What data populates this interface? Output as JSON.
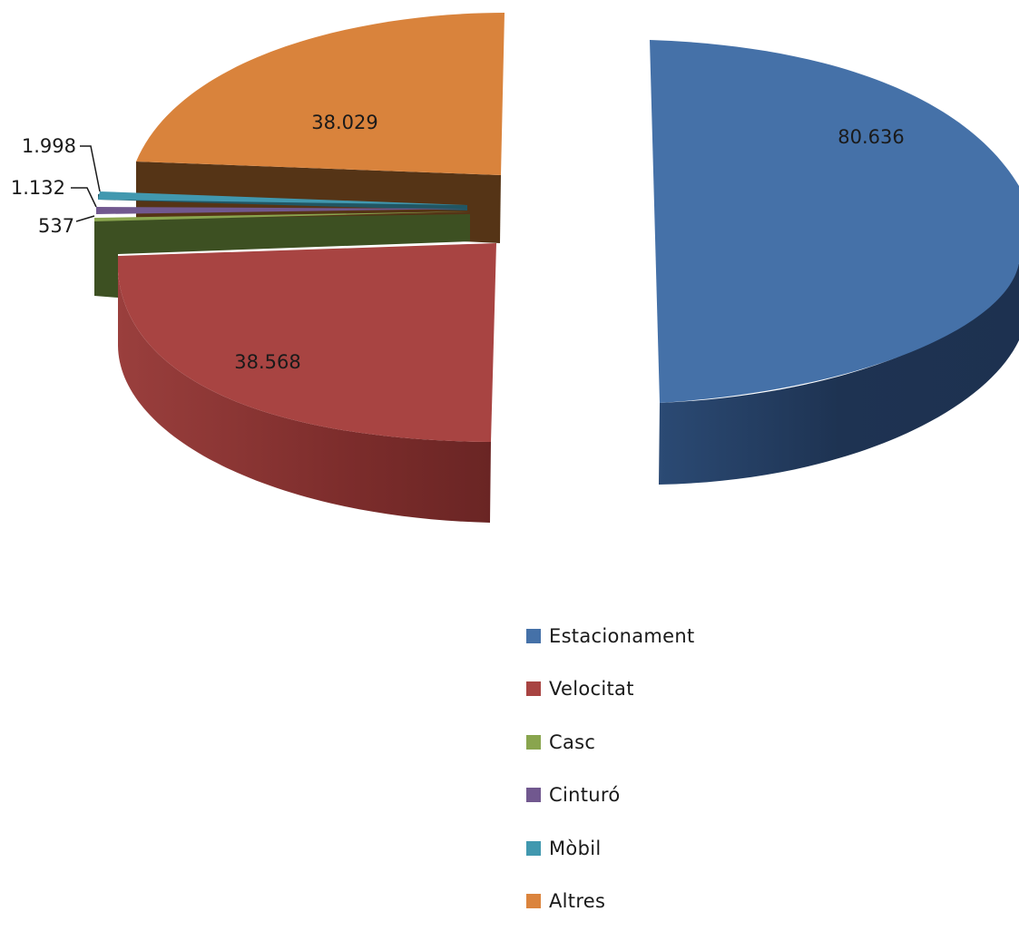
{
  "chart_data": {
    "type": "pie",
    "variant": "3d-exploded",
    "title": "",
    "legend_position": "bottom-right",
    "slices": [
      {
        "name": "Estacionament",
        "value": 80636,
        "label": "80.636",
        "color": "#4571a8",
        "side_color": "#223a5c"
      },
      {
        "name": "Velocitat",
        "value": 38568,
        "label": "38.568",
        "color": "#a84442",
        "side_color": "#6e2726"
      },
      {
        "name": "Casc",
        "value": 537,
        "label": "537",
        "color": "#89a54e",
        "side_color": "#3d5022"
      },
      {
        "name": "Cinturó",
        "value": 1132,
        "label": "1.132",
        "color": "#71588f",
        "side_color": "#3e2f52"
      },
      {
        "name": "Mòbil",
        "value": 1998,
        "label": "1.998",
        "color": "#4198af",
        "side_color": "#215663"
      },
      {
        "name": "Altres",
        "value": 38029,
        "label": "38.029",
        "color": "#db843d",
        "side_color": "#5b3719"
      }
    ]
  }
}
